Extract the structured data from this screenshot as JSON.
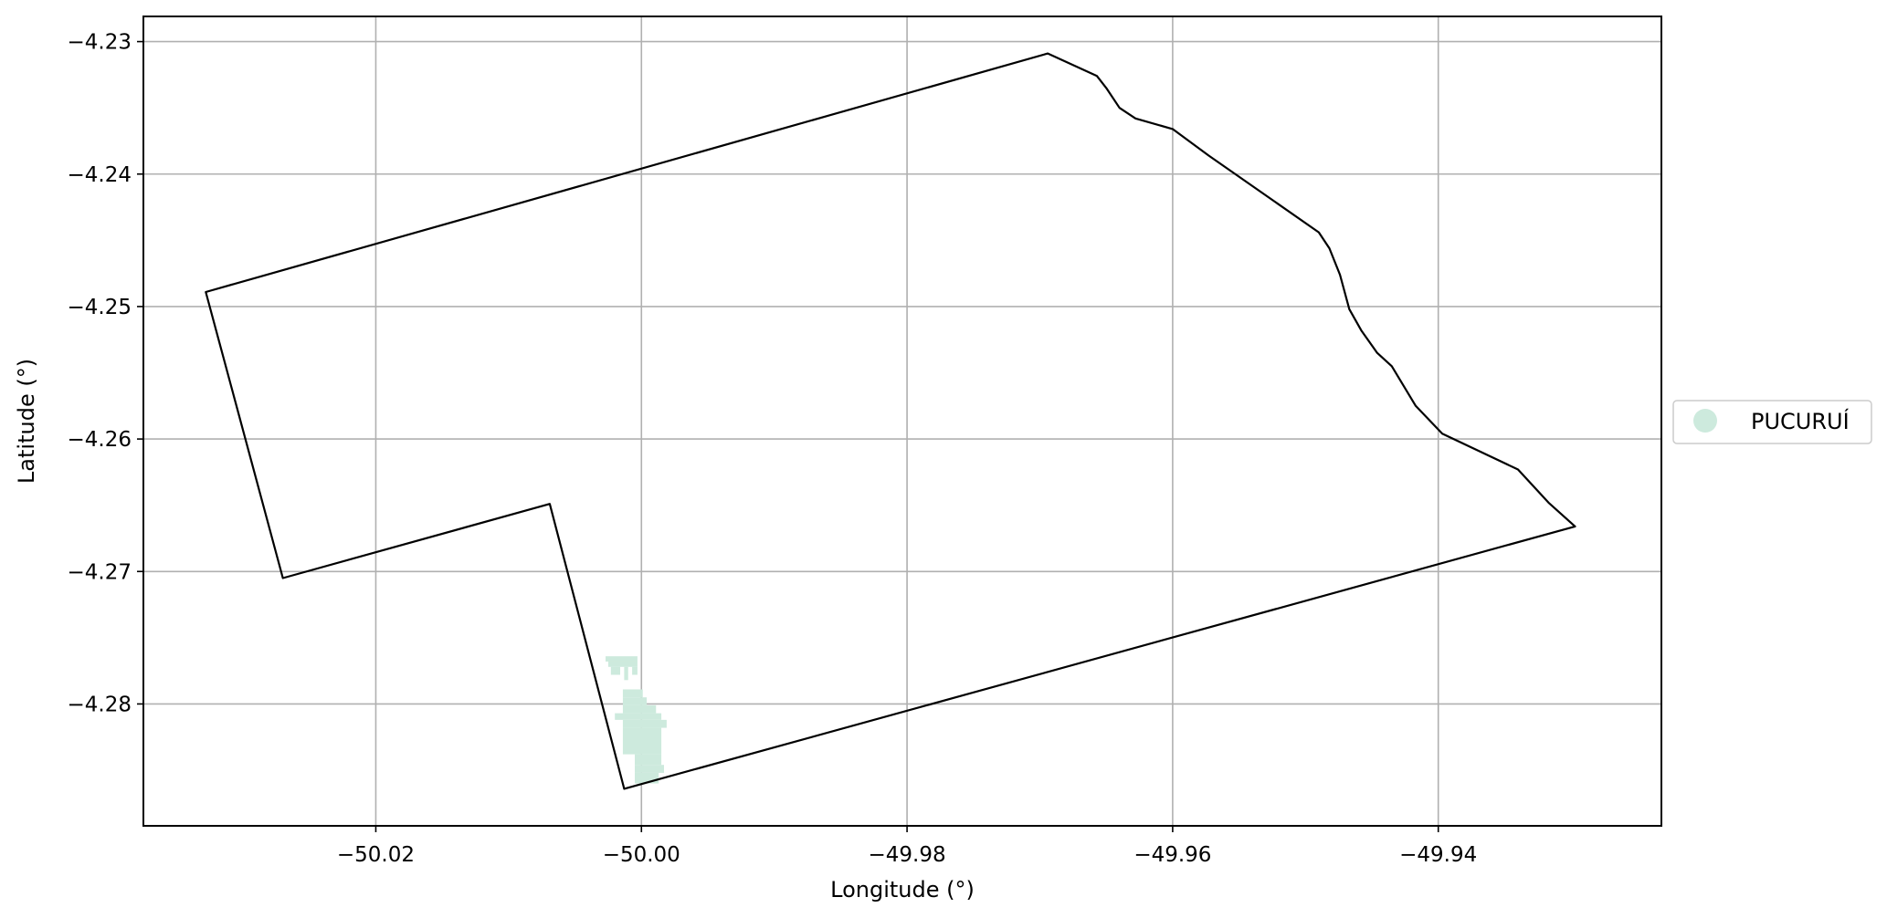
{
  "chart_data": {
    "type": "map",
    "xlabel": "Longitude (°)",
    "ylabel": "Latitude (°)",
    "xlim": [
      -50.0375,
      -49.9232
    ],
    "ylim": [
      -4.2892,
      -4.2281
    ],
    "grid": true,
    "x_ticks": [
      {
        "value": -50.02,
        "label": "−50.02"
      },
      {
        "value": -50.0,
        "label": "−50.00"
      },
      {
        "value": -49.98,
        "label": "−49.98"
      },
      {
        "value": -49.96,
        "label": "−49.96"
      },
      {
        "value": -49.94,
        "label": "−49.94"
      }
    ],
    "y_ticks": [
      {
        "value": -4.23,
        "label": "−4.23"
      },
      {
        "value": -4.24,
        "label": "−4.24"
      },
      {
        "value": -4.25,
        "label": "−4.25"
      },
      {
        "value": -4.26,
        "label": "−4.26"
      },
      {
        "value": -4.27,
        "label": "−4.27"
      },
      {
        "value": -4.28,
        "label": "−4.28"
      }
    ],
    "boundary": {
      "color": "#000000",
      "coords": [
        [
          -50.0328,
          -4.2489
        ],
        [
          -49.9694,
          -4.2309
        ],
        [
          -49.9657,
          -4.2326
        ],
        [
          -49.965,
          -4.2335
        ],
        [
          -49.964,
          -4.235
        ],
        [
          -49.9628,
          -4.2358
        ],
        [
          -49.96,
          -4.2366
        ],
        [
          -49.9573,
          -4.2386
        ],
        [
          -49.949,
          -4.2444
        ],
        [
          -49.9482,
          -4.2456
        ],
        [
          -49.9474,
          -4.2476
        ],
        [
          -49.9467,
          -4.2502
        ],
        [
          -49.9458,
          -4.2518
        ],
        [
          -49.9446,
          -4.2535
        ],
        [
          -49.9435,
          -4.2545
        ],
        [
          -49.9417,
          -4.2575
        ],
        [
          -49.9397,
          -4.2596
        ],
        [
          -49.934,
          -4.2623
        ],
        [
          -49.9317,
          -4.2648
        ],
        [
          -49.9297,
          -4.2666
        ],
        [
          -50.0013,
          -4.2864
        ],
        [
          -50.0069,
          -4.2649
        ],
        [
          -50.027,
          -4.2705
        ]
      ]
    },
    "series": [
      {
        "name": "PUCURUÍ",
        "color": "#cdeadd",
        "marker": "circle",
        "cells": [
          [
            -50.0027,
            -50.0003,
            -4.2768,
            -4.2764
          ],
          [
            -50.0025,
            -50.0003,
            -4.2772,
            -4.2768
          ],
          [
            -50.0023,
            -50.0016,
            -4.2778,
            -4.2772
          ],
          [
            -50.0013,
            -50.001,
            -4.2782,
            -4.2772
          ],
          [
            -50.0007,
            -50.0003,
            -4.2778,
            -4.2772
          ],
          [
            -50.0014,
            -49.9999,
            -4.2795,
            -4.2789
          ],
          [
            -50.0014,
            -49.9996,
            -4.2801,
            -4.2795
          ],
          [
            -50.0014,
            -49.9989,
            -4.2807,
            -4.2801
          ],
          [
            -50.002,
            -49.9985,
            -4.2812,
            -4.2807
          ],
          [
            -50.0014,
            -49.9981,
            -4.2818,
            -4.2812
          ],
          [
            -50.0014,
            -49.9985,
            -4.2838,
            -4.2818
          ],
          [
            -50.0005,
            -49.9985,
            -4.2846,
            -4.2838
          ],
          [
            -50.0005,
            -49.9983,
            -4.2852,
            -4.2846
          ],
          [
            -50.0005,
            -49.9987,
            -4.286,
            -4.2852
          ]
        ]
      }
    ]
  }
}
